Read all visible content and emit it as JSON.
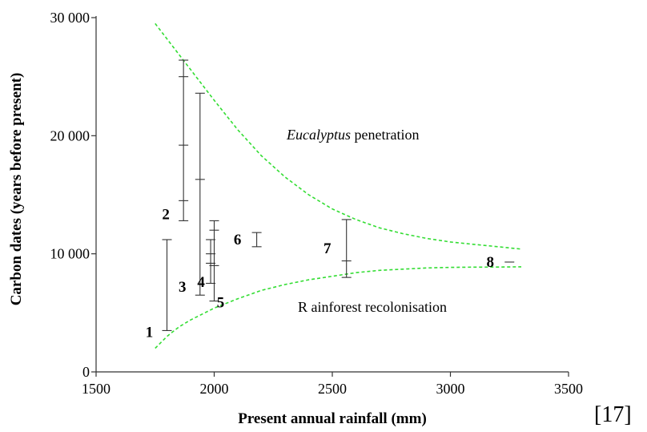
{
  "chart_data": {
    "type": "scatter",
    "title": "",
    "xlabel": "Present annual rainfall (mm)",
    "ylabel": "Carbon dates (years before present)",
    "xlim": [
      1500,
      3500
    ],
    "ylim": [
      0,
      30000
    ],
    "x_ticks": [
      1500,
      2000,
      2500,
      3000,
      3500
    ],
    "x_tick_labels": [
      "1500",
      "2000",
      "2500",
      "3000",
      "3500"
    ],
    "y_ticks": [
      0,
      10000,
      20000,
      30000
    ],
    "y_tick_labels": [
      "0",
      "10 000",
      "20 000",
      "30 000"
    ],
    "grid": false,
    "legend": "none",
    "ranges": [
      {
        "label": "1",
        "x": 1800,
        "low": 3500,
        "high": 11200,
        "marks": []
      },
      {
        "label": "2",
        "x": 1870,
        "low": 12800,
        "high": 26400,
        "marks": [
          14500,
          19200,
          25000
        ]
      },
      {
        "label": "3",
        "x": 1940,
        "low": 6500,
        "high": 23600,
        "marks": [
          16300
        ]
      },
      {
        "label": "4",
        "x": 1985,
        "low": 7500,
        "high": 11200,
        "marks": [
          9200,
          10000
        ]
      },
      {
        "label": "5",
        "x": 2000,
        "low": 6000,
        "high": 12800,
        "marks": [
          9000,
          12000
        ]
      },
      {
        "label": "6",
        "x": 2180,
        "low": 10600,
        "high": 11800,
        "marks": []
      },
      {
        "label": "7",
        "x": 2560,
        "low": 8000,
        "high": 12900,
        "marks": [
          9400
        ]
      },
      {
        "label": "8",
        "x": 3250,
        "low": 9300,
        "high": 9300,
        "marks": []
      }
    ],
    "curves": [
      {
        "name": "Eucalyptus penetration",
        "label_italic": "Eucalyptus",
        "label_rest": " penetration",
        "color": "#33dd33",
        "x": [
          1750,
          1800,
          1850,
          1900,
          1950,
          2000,
          2100,
          2200,
          2300,
          2400,
          2500,
          2600,
          2700,
          2800,
          2900,
          3000,
          3100,
          3200,
          3300
        ],
        "y": [
          29500,
          28200,
          26900,
          25600,
          24300,
          23000,
          20500,
          18300,
          16500,
          15000,
          13800,
          12900,
          12200,
          11700,
          11300,
          11000,
          10800,
          10600,
          10400
        ]
      },
      {
        "name": "Rainforest recolonisation",
        "label": "R ainforest recolonisation",
        "color": "#33dd33",
        "x": [
          1750,
          1800,
          1850,
          1900,
          1950,
          2000,
          2100,
          2200,
          2300,
          2400,
          2500,
          2600,
          2700,
          2800,
          2900,
          3000,
          3100,
          3200,
          3300
        ],
        "y": [
          2000,
          3000,
          3800,
          4400,
          4900,
          5400,
          6200,
          6900,
          7400,
          7800,
          8100,
          8400,
          8600,
          8700,
          8800,
          8850,
          8870,
          8880,
          8900
        ]
      }
    ]
  },
  "citation": "[17]"
}
